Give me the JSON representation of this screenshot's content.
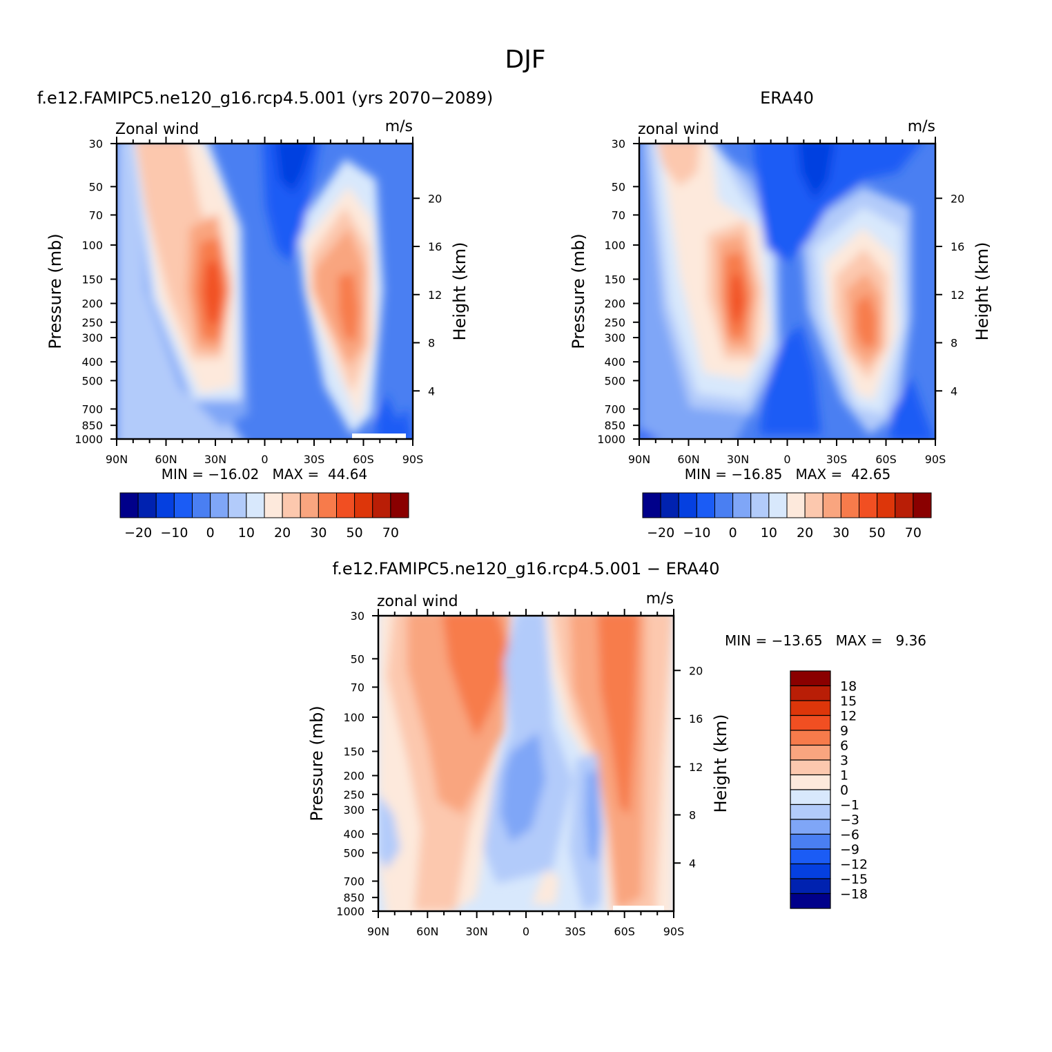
{
  "figure": {
    "title": "DJF"
  },
  "colors": {
    "scale": [
      "#00008a",
      "#0022b0",
      "#0540e0",
      "#1b5cf5",
      "#4a7ff2",
      "#7fa6f7",
      "#b2cbfa",
      "#d8e8fc",
      "#fde9dc",
      "#fcc8ae",
      "#f9a57f",
      "#f77b4b",
      "#f14f22",
      "#dd360a",
      "#b91e06",
      "#8a0000"
    ]
  },
  "chart_data": [
    {
      "type": "heatmap",
      "title": "f.e12.FAMIPC5.ne120_g16.rcp4.5.001 (yrs 2070-2089)",
      "left_label": "Zonal wind",
      "units": "m/s",
      "ylabel": "Pressure (mb)",
      "y2label": "Height (km)",
      "x_ticks": [
        "90N",
        "60N",
        "30N",
        "0",
        "30S",
        "60S",
        "90S"
      ],
      "x_range": [
        90,
        -90
      ],
      "y_ticks": [
        30,
        50,
        70,
        100,
        150,
        200,
        250,
        300,
        400,
        500,
        700,
        850,
        1000
      ],
      "y_range": [
        30,
        1000
      ],
      "y2_ticks": [
        20,
        16,
        12,
        8,
        4
      ],
      "stats": "MIN = -16.02   MAX =  44.64",
      "min": -16.02,
      "max": 44.64,
      "jets": [
        {
          "lat": 30,
          "p": 180,
          "speed": 44.64
        },
        {
          "lat": -52,
          "p": 220,
          "speed": 40
        }
      ],
      "easterly_min": {
        "lat": -18,
        "p": 40,
        "speed": -16.02
      },
      "colorbar": {
        "orientation": "horizontal",
        "levels": [
          -25,
          -20,
          -15,
          -10,
          -5,
          0,
          5,
          10,
          15,
          20,
          25,
          30,
          40,
          50,
          60,
          70
        ],
        "labels": [
          "-20",
          "-10",
          "0",
          "10",
          "20",
          "30",
          "50",
          "70"
        ]
      }
    },
    {
      "type": "heatmap",
      "title": "ERA40",
      "left_label": "zonal wind",
      "units": "m/s",
      "ylabel": "Pressure (mb)",
      "y2label": "Height (km)",
      "x_ticks": [
        "90N",
        "60N",
        "30N",
        "0",
        "30S",
        "60S",
        "90S"
      ],
      "x_range": [
        90,
        -90
      ],
      "y_ticks": [
        30,
        50,
        70,
        100,
        150,
        200,
        250,
        300,
        400,
        500,
        700,
        850,
        1000
      ],
      "y_range": [
        30,
        1000
      ],
      "y2_ticks": [
        20,
        16,
        12,
        8,
        4
      ],
      "stats": "MIN = -16.85   MAX =  42.65",
      "min": -16.85,
      "max": 42.65,
      "jets": [
        {
          "lat": 30,
          "p": 200,
          "speed": 42.65
        },
        {
          "lat": -45,
          "p": 240,
          "speed": 36
        }
      ],
      "easterly_min": {
        "lat": -16,
        "p": 40,
        "speed": -16.85
      },
      "colorbar": {
        "orientation": "horizontal",
        "levels": [
          -25,
          -20,
          -15,
          -10,
          -5,
          0,
          5,
          10,
          15,
          20,
          25,
          30,
          40,
          50,
          60,
          70
        ],
        "labels": [
          "-20",
          "-10",
          "0",
          "10",
          "20",
          "30",
          "50",
          "70"
        ]
      }
    },
    {
      "type": "heatmap",
      "title": "f.e12.FAMIPC5.ne120_g16.rcp4.5.001 - ERA40",
      "left_label": "zonal wind",
      "units": "m/s",
      "ylabel": "Pressure (mb)",
      "y2label": "Height (km)",
      "x_ticks": [
        "90N",
        "60N",
        "30N",
        "0",
        "30S",
        "60S",
        "90S"
      ],
      "x_range": [
        90,
        -90
      ],
      "y_ticks": [
        30,
        50,
        70,
        100,
        150,
        200,
        250,
        300,
        400,
        500,
        700,
        850,
        1000
      ],
      "y_range": [
        30,
        1000
      ],
      "y2_ticks": [
        20,
        16,
        12,
        8,
        4
      ],
      "stats": "MIN = -13.65   MAX =   9.36",
      "min": -13.65,
      "max": 9.36,
      "colorbar": {
        "orientation": "vertical",
        "levels": [
          -18,
          -15,
          -12,
          -9,
          -6,
          -3,
          -1,
          0,
          1,
          3,
          6,
          9,
          12,
          15,
          18
        ],
        "labels": [
          "18",
          "15",
          "12",
          "9",
          "6",
          "3",
          "1",
          "0",
          "-1",
          "-3",
          "-6",
          "-9",
          "-12",
          "-15",
          "-18"
        ]
      }
    }
  ]
}
